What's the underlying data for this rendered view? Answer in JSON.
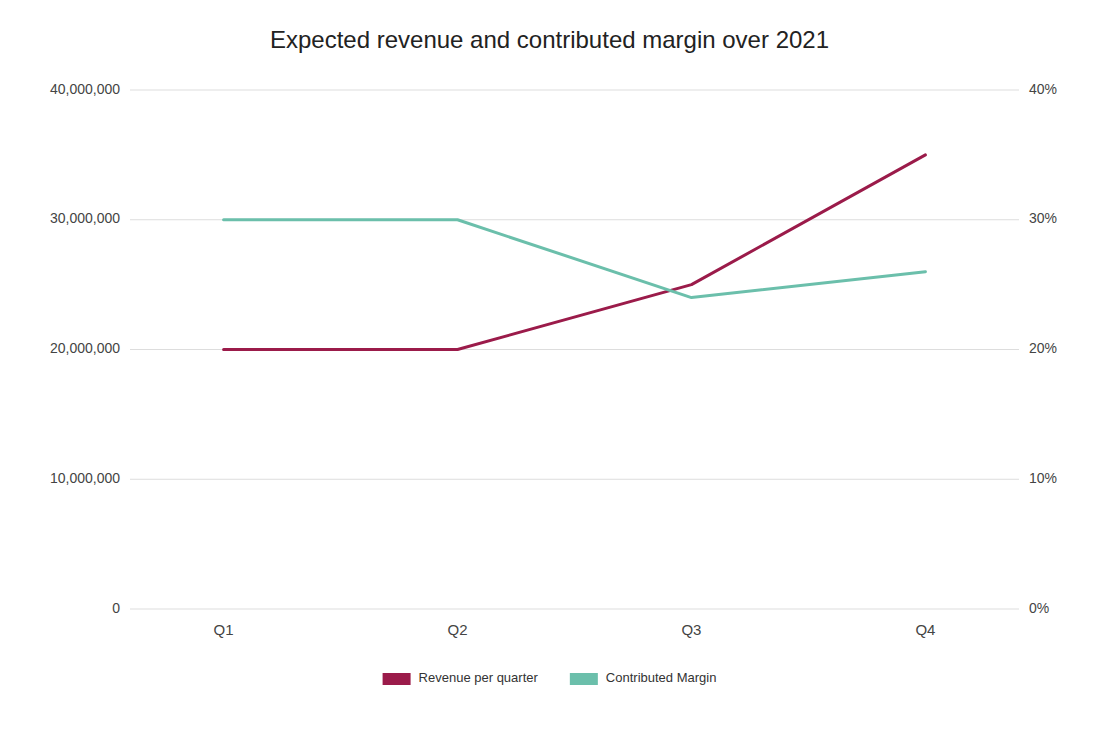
{
  "chart_data": {
    "type": "line",
    "title": "Expected revenue and contributed margin over 2021",
    "categories": [
      "Q1",
      "Q2",
      "Q3",
      "Q4"
    ],
    "series": [
      {
        "name": "Revenue per quarter",
        "color": "#9B1B4A",
        "values": [
          20000000,
          20000000,
          25000000,
          35000000
        ]
      },
      {
        "name": "Contributed Margin",
        "color": "#6BBFAB",
        "values": [
          0.3,
          0.3,
          0.24,
          0.26
        ],
        "axis": "y2"
      }
    ],
    "ylim": [
      0,
      40000000
    ],
    "yticks": [
      0,
      {
        "value": 10000000,
        "label": "10,000,000"
      },
      {
        "value": 20000000,
        "label": "20,000,000"
      },
      {
        "value": 30000000,
        "label": "30,000,000"
      },
      {
        "value": 40000000,
        "label": "40,000,000"
      }
    ],
    "y2lim": [
      0,
      0.4
    ],
    "y2ticks": [
      {
        "value": 0,
        "label": "0%"
      },
      {
        "value": 0.1,
        "label": "10%"
      },
      {
        "value": 0.2,
        "label": "20%"
      },
      {
        "value": 0.3,
        "label": "30%"
      },
      {
        "value": 0.4,
        "label": "40%"
      }
    ],
    "grid": true,
    "legend": "bottom"
  }
}
